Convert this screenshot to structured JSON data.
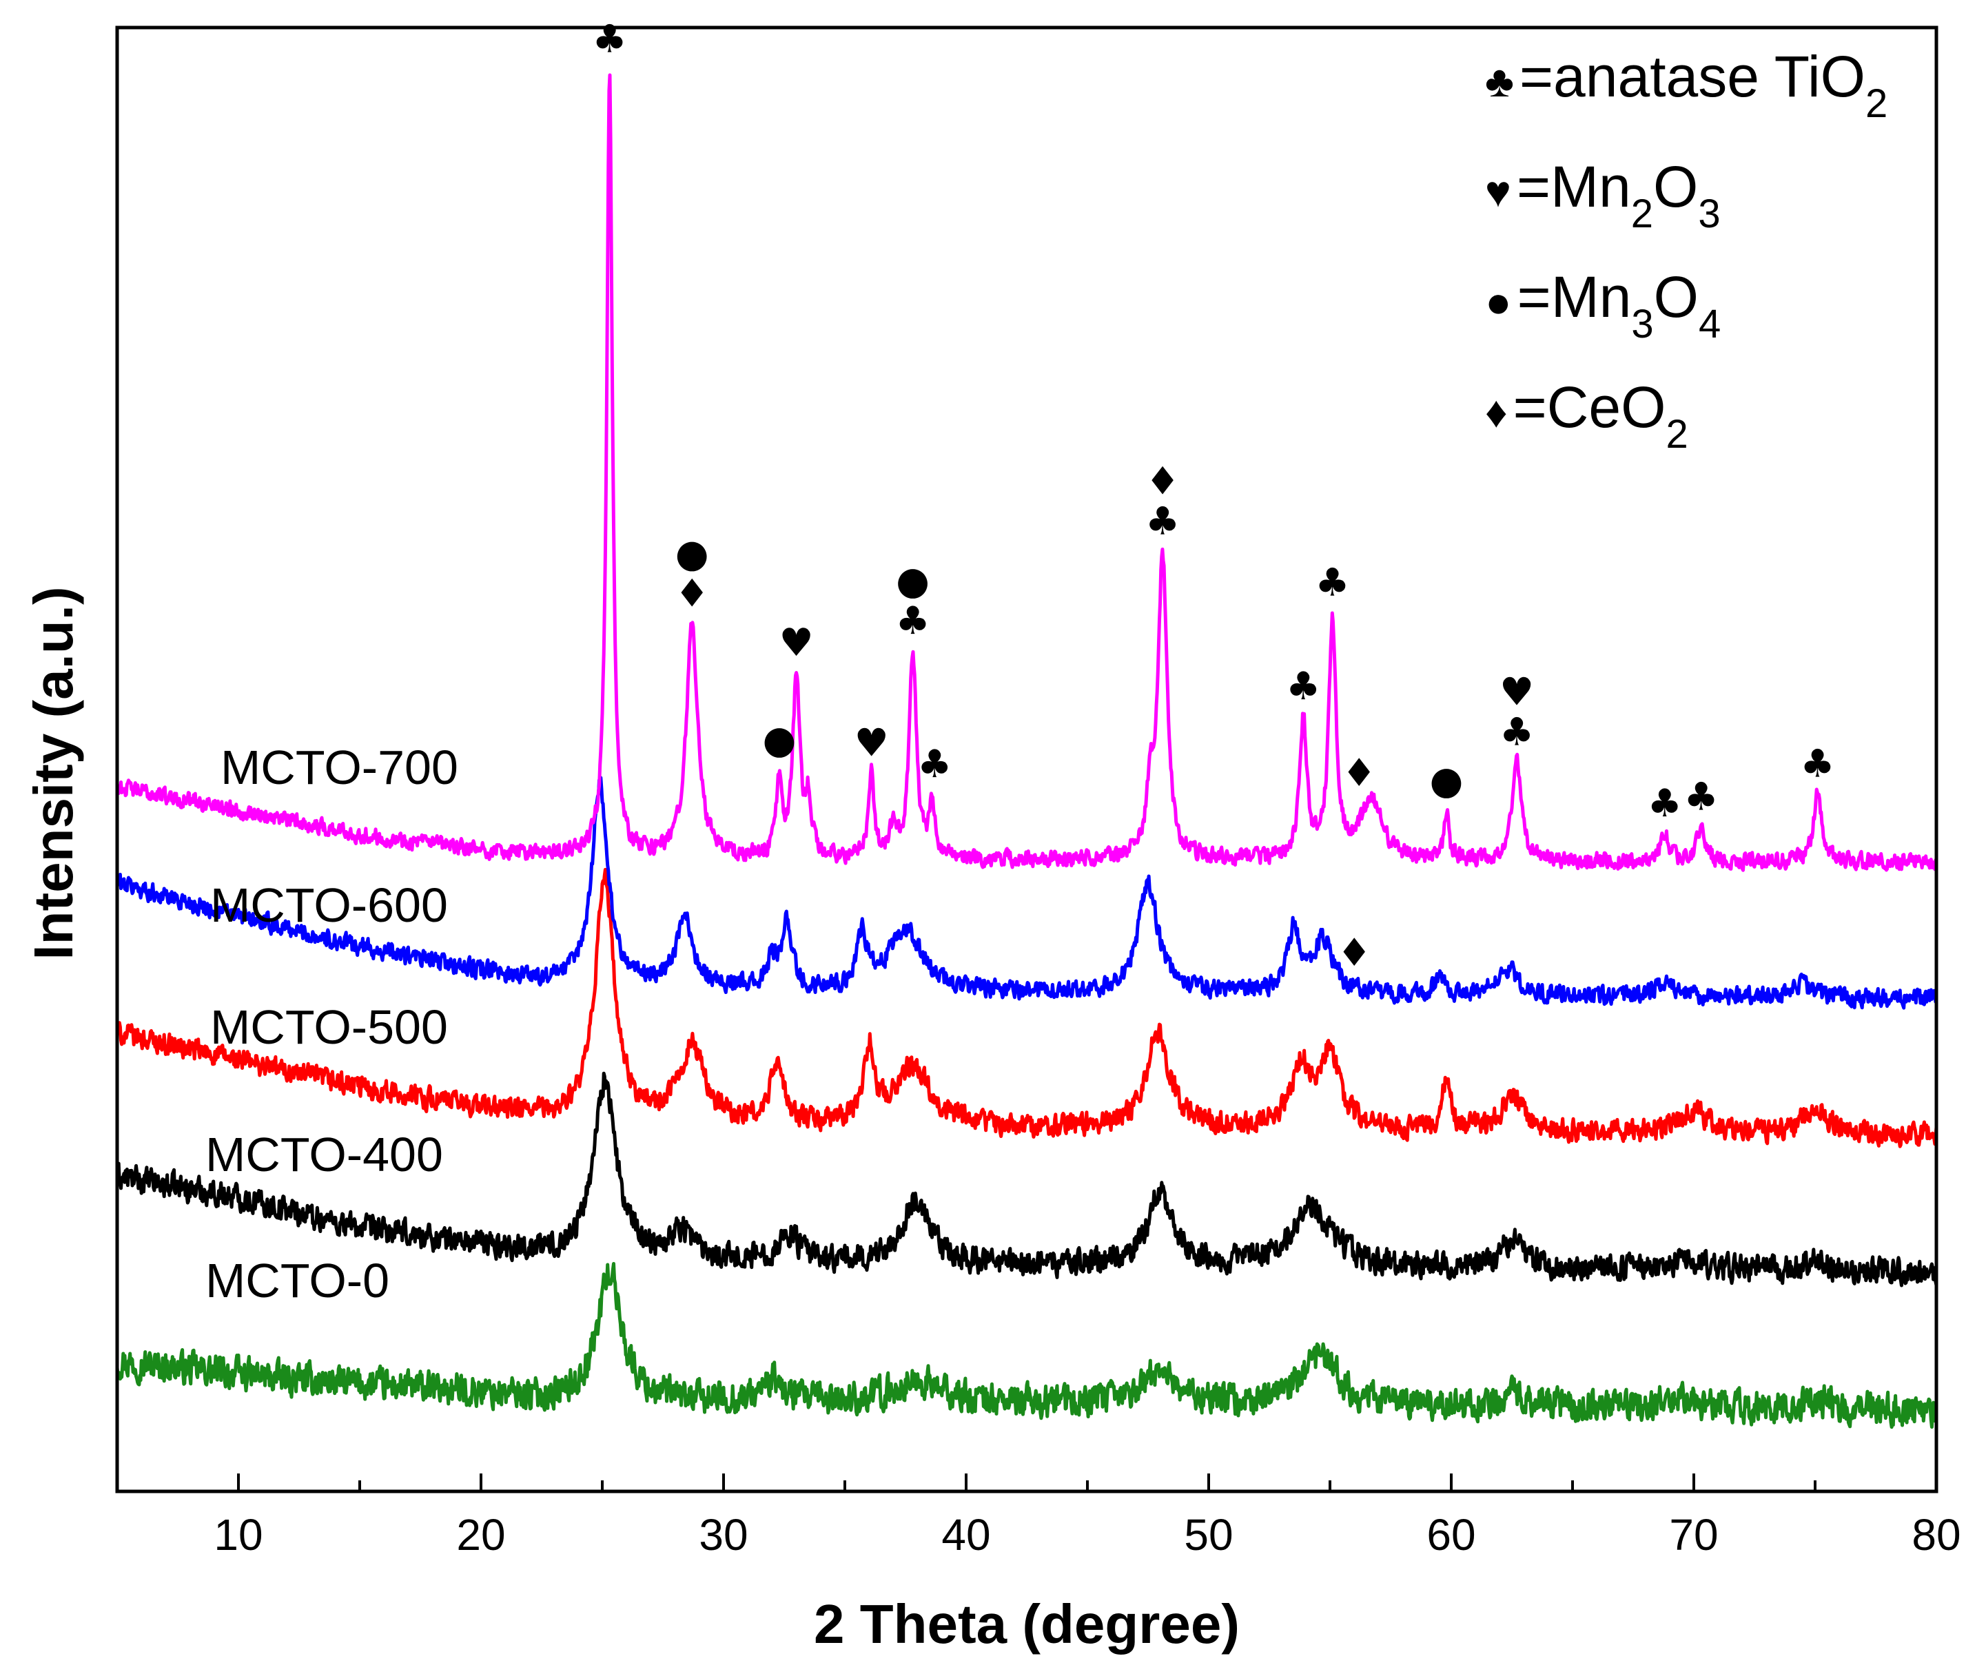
{
  "chart_data": {
    "type": "line",
    "title": "",
    "xlabel": "2 Theta (degree)",
    "ylabel": "Intensity (a.u.)",
    "xlim": [
      5,
      80
    ],
    "xticks": [
      10,
      20,
      30,
      40,
      50,
      60,
      70,
      80
    ],
    "yticks_shown": false,
    "legend": {
      "placement": "top-right",
      "entries": [
        {
          "symbol": "♣",
          "icon": "club-icon",
          "prefix": "=anatase TiO",
          "sub1": "2",
          "mid": "",
          "sub2": ""
        },
        {
          "symbol": "♥",
          "icon": "heart-icon",
          "prefix": "=Mn",
          "sub1": "2",
          "mid": "O",
          "sub2": "3"
        },
        {
          "symbol": "●",
          "icon": "dot-icon",
          "prefix": "=Mn",
          "sub1": "3",
          "mid": "O",
          "sub2": "4"
        },
        {
          "symbol": "♦",
          "icon": "diamond-icon",
          "prefix": "=CeO",
          "sub1": "2",
          "mid": "",
          "sub2": ""
        }
      ]
    },
    "series": [
      {
        "name": "MCTO-0",
        "color": "#1a8a1a",
        "baseline": 1.2,
        "noise": 0.16,
        "background": [
          [
            5,
            0.35
          ],
          [
            12,
            0.22
          ],
          [
            20,
            0.12
          ],
          [
            23,
            0.06
          ],
          [
            35,
            0.05
          ],
          [
            80,
            0.0
          ]
        ],
        "peaks": [
          [
            25.3,
            0.95,
            0.6
          ],
          [
            32.0,
            0.15,
            0.5
          ],
          [
            38.0,
            0.15,
            1.2
          ],
          [
            48.0,
            0.25,
            0.8
          ],
          [
            54.6,
            0.35,
            0.9
          ],
          [
            62.7,
            0.1,
            0.6
          ],
          [
            69.0,
            0.06,
            0.8
          ],
          [
            75.1,
            0.06,
            0.6
          ]
        ]
      },
      {
        "name": "MCTO-400",
        "color": "#000000",
        "baseline": 2.2,
        "noise": 0.13,
        "background": [
          [
            5,
            0.7
          ],
          [
            10,
            0.55
          ],
          [
            15,
            0.32
          ],
          [
            20,
            0.2
          ],
          [
            23,
            0.12
          ],
          [
            35,
            0.06
          ],
          [
            80,
            0.0
          ]
        ],
        "peaks": [
          [
            25.1,
            1.3,
            0.55
          ],
          [
            28.3,
            0.2,
            0.6
          ],
          [
            32.7,
            0.2,
            0.5
          ],
          [
            37.9,
            0.45,
            0.7
          ],
          [
            48.0,
            0.55,
            0.6
          ],
          [
            54.2,
            0.45,
            1.0
          ],
          [
            62.5,
            0.2,
            0.6
          ],
          [
            69.8,
            0.08,
            0.8
          ],
          [
            75.0,
            0.08,
            0.6
          ]
        ]
      },
      {
        "name": "MCTO-500",
        "color": "#ff0000",
        "baseline": 3.2,
        "noise": 0.11,
        "background": [
          [
            5,
            0.75
          ],
          [
            10,
            0.55
          ],
          [
            15,
            0.35
          ],
          [
            20,
            0.2
          ],
          [
            23,
            0.12
          ],
          [
            35,
            0.06
          ],
          [
            80,
            0.0
          ]
        ],
        "peaks": [
          [
            25.1,
            1.8,
            0.45
          ],
          [
            28.7,
            0.55,
            0.6
          ],
          [
            32.2,
            0.45,
            0.3
          ],
          [
            36.0,
            0.55,
            0.25
          ],
          [
            37.8,
            0.45,
            0.9
          ],
          [
            47.9,
            0.7,
            0.6
          ],
          [
            53.8,
            0.45,
            0.5
          ],
          [
            55.0,
            0.55,
            0.5
          ],
          [
            59.8,
            0.4,
            0.2
          ],
          [
            62.5,
            0.25,
            0.6
          ],
          [
            70.0,
            0.15,
            0.8
          ],
          [
            75.0,
            0.2,
            0.6
          ]
        ]
      },
      {
        "name": "MCTO-600",
        "color": "#0000ff",
        "baseline": 4.2,
        "noise": 0.09,
        "background": [
          [
            5,
            0.85
          ],
          [
            10,
            0.6
          ],
          [
            15,
            0.38
          ],
          [
            20,
            0.2
          ],
          [
            23,
            0.12
          ],
          [
            35,
            0.05
          ],
          [
            80,
            0.0
          ]
        ],
        "peaks": [
          [
            24.9,
            1.45,
            0.4
          ],
          [
            28.4,
            0.5,
            0.4
          ],
          [
            32.0,
            0.2,
            0.2
          ],
          [
            32.6,
            0.5,
            0.25
          ],
          [
            35.7,
            0.4,
            0.25
          ],
          [
            37.5,
            0.45,
            0.8
          ],
          [
            47.5,
            0.8,
            0.5
          ],
          [
            53.5,
            0.45,
            0.3
          ],
          [
            54.7,
            0.4,
            0.5
          ],
          [
            59.5,
            0.15,
            0.2
          ],
          [
            62.3,
            0.2,
            0.5
          ],
          [
            68.8,
            0.1,
            0.5
          ],
          [
            74.5,
            0.1,
            0.5
          ]
        ]
      },
      {
        "name": "MCTO-700",
        "color": "#ff00ff",
        "baseline": 5.2,
        "noise": 0.08,
        "background": [
          [
            5,
            0.55
          ],
          [
            10,
            0.38
          ],
          [
            15,
            0.2
          ],
          [
            20,
            0.08
          ],
          [
            24,
            0.04
          ],
          [
            35,
            0.02
          ],
          [
            80,
            0.0
          ]
        ],
        "peaks": [
          [
            25.3,
            5.75,
            0.14
          ],
          [
            28.7,
            1.7,
            0.28
          ],
          [
            32.3,
            0.55,
            0.14
          ],
          [
            33.0,
            1.3,
            0.18
          ],
          [
            33.5,
            0.4,
            0.14
          ],
          [
            36.1,
            0.6,
            0.14
          ],
          [
            37.0,
            0.25,
            0.14
          ],
          [
            37.8,
            1.5,
            0.18
          ],
          [
            38.6,
            0.4,
            0.14
          ],
          [
            47.6,
            0.4,
            0.2
          ],
          [
            48.1,
            2.2,
            0.22
          ],
          [
            53.9,
            1.0,
            0.18
          ],
          [
            55.1,
            1.75,
            0.18
          ],
          [
            56.7,
            0.45,
            0.5
          ],
          [
            59.8,
            0.35,
            0.12
          ],
          [
            62.7,
            0.72,
            0.22
          ],
          [
            68.8,
            0.2,
            0.2
          ],
          [
            70.3,
            0.25,
            0.2
          ],
          [
            75.1,
            0.5,
            0.2
          ]
        ]
      }
    ],
    "peak_markers": [
      {
        "x": 25.3,
        "series": "MCTO-700",
        "icons": [
          "club-icon"
        ],
        "symbols": [
          "♣"
        ]
      },
      {
        "x": 28.7,
        "series": "MCTO-700",
        "icons": [
          "diamond-icon",
          "dot-icon"
        ],
        "symbols": [
          "♦",
          "●"
        ]
      },
      {
        "x": 32.3,
        "series": "MCTO-700",
        "icons": [
          "dot-icon"
        ],
        "symbols": [
          "●"
        ]
      },
      {
        "x": 33.0,
        "series": "MCTO-700",
        "icons": [
          "heart-icon"
        ],
        "symbols": [
          "♥"
        ]
      },
      {
        "x": 36.1,
        "series": "MCTO-700",
        "icons": [
          "heart-icon"
        ],
        "symbols": [
          "♥"
        ]
      },
      {
        "x": 37.8,
        "series": "MCTO-700",
        "icons": [
          "club-icon",
          "dot-icon"
        ],
        "symbols": [
          "♣",
          "●"
        ]
      },
      {
        "x": 38.7,
        "series": "MCTO-700",
        "icons": [
          "club-icon"
        ],
        "symbols": [
          "♣"
        ]
      },
      {
        "x": 48.1,
        "series": "MCTO-700",
        "icons": [
          "club-icon",
          "diamond-icon"
        ],
        "symbols": [
          "♣",
          "♦"
        ]
      },
      {
        "x": 53.9,
        "series": "MCTO-700",
        "icons": [
          "club-icon"
        ],
        "symbols": [
          "♣"
        ]
      },
      {
        "x": 55.1,
        "series": "MCTO-700",
        "icons": [
          "club-icon"
        ],
        "symbols": [
          "♣"
        ]
      },
      {
        "x": 56.2,
        "series": "MCTO-700",
        "icons": [
          "diamond-icon"
        ],
        "symbols": [
          "♦"
        ]
      },
      {
        "x": 59.8,
        "series": "MCTO-700",
        "icons": [
          "dot-icon"
        ],
        "symbols": [
          "●"
        ]
      },
      {
        "x": 62.7,
        "series": "MCTO-700",
        "icons": [
          "club-icon",
          "heart-icon"
        ],
        "symbols": [
          "♣",
          "♥"
        ]
      },
      {
        "x": 68.8,
        "series": "MCTO-700",
        "icons": [
          "club-icon"
        ],
        "symbols": [
          "♣"
        ]
      },
      {
        "x": 70.3,
        "series": "MCTO-700",
        "icons": [
          "club-icon"
        ],
        "symbols": [
          "♣"
        ]
      },
      {
        "x": 75.1,
        "series": "MCTO-700",
        "icons": [
          "club-icon"
        ],
        "symbols": [
          "♣"
        ]
      },
      {
        "x": 56.0,
        "series": "MCTO-600",
        "icons": [
          "diamond-icon"
        ],
        "symbols": [
          "♦"
        ]
      }
    ]
  }
}
